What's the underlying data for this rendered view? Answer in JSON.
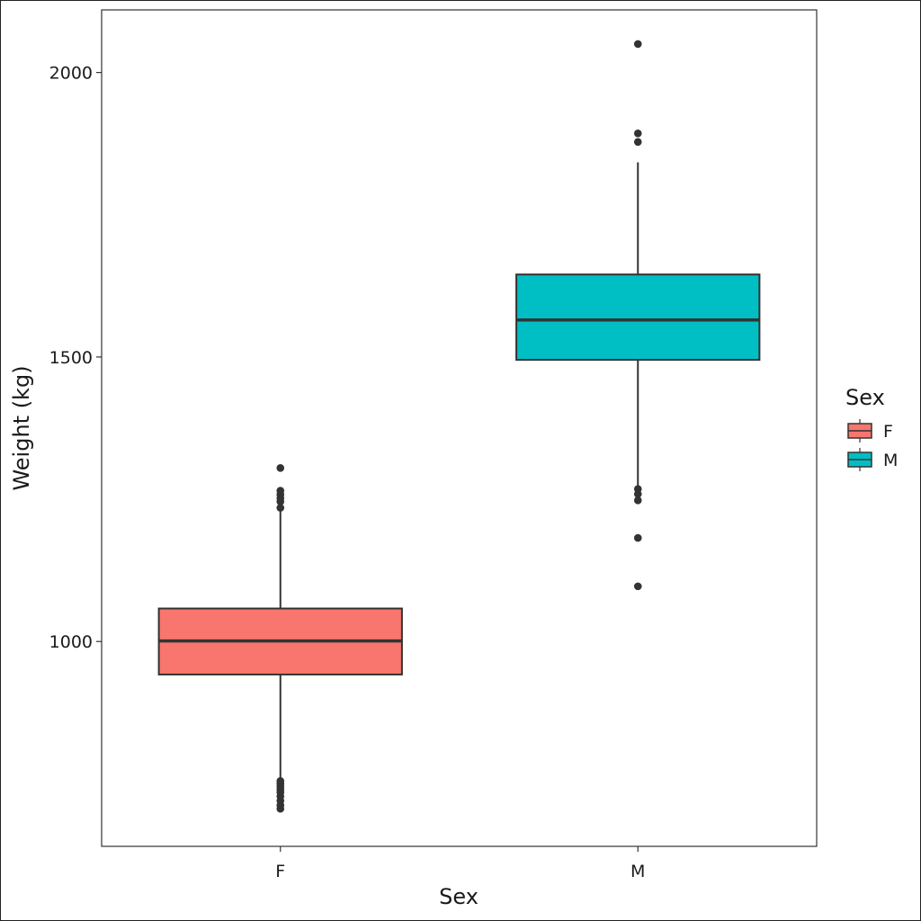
{
  "chart_data": {
    "type": "boxplot",
    "xlabel": "Sex",
    "ylabel": "Weight (kg)",
    "ylim": [
      640,
      2110
    ],
    "yticks": [
      1000,
      1500,
      2000
    ],
    "grid": false,
    "legend": {
      "title": "Sex",
      "placement": "right",
      "items": [
        {
          "label": "F",
          "color": "#F8766D"
        },
        {
          "label": "M",
          "color": "#00BFC4"
        }
      ]
    },
    "categories": [
      "F",
      "M"
    ],
    "boxes": [
      {
        "category": "F",
        "color": "#F8766D",
        "q1": 942,
        "median": 1001,
        "q3": 1058,
        "whisker_low": 760,
        "whisker_high": 1233,
        "outliers": [
          1305,
          1265,
          1258,
          1252,
          1246,
          1235,
          755,
          750,
          745,
          740,
          735,
          728,
          720,
          712,
          706
        ]
      },
      {
        "category": "M",
        "color": "#00BFC4",
        "q1": 1495,
        "median": 1565,
        "q3": 1645,
        "whisker_low": 1272,
        "whisker_high": 1842,
        "outliers": [
          2050,
          1893,
          1878,
          1268,
          1259,
          1248,
          1182,
          1097
        ]
      }
    ]
  }
}
